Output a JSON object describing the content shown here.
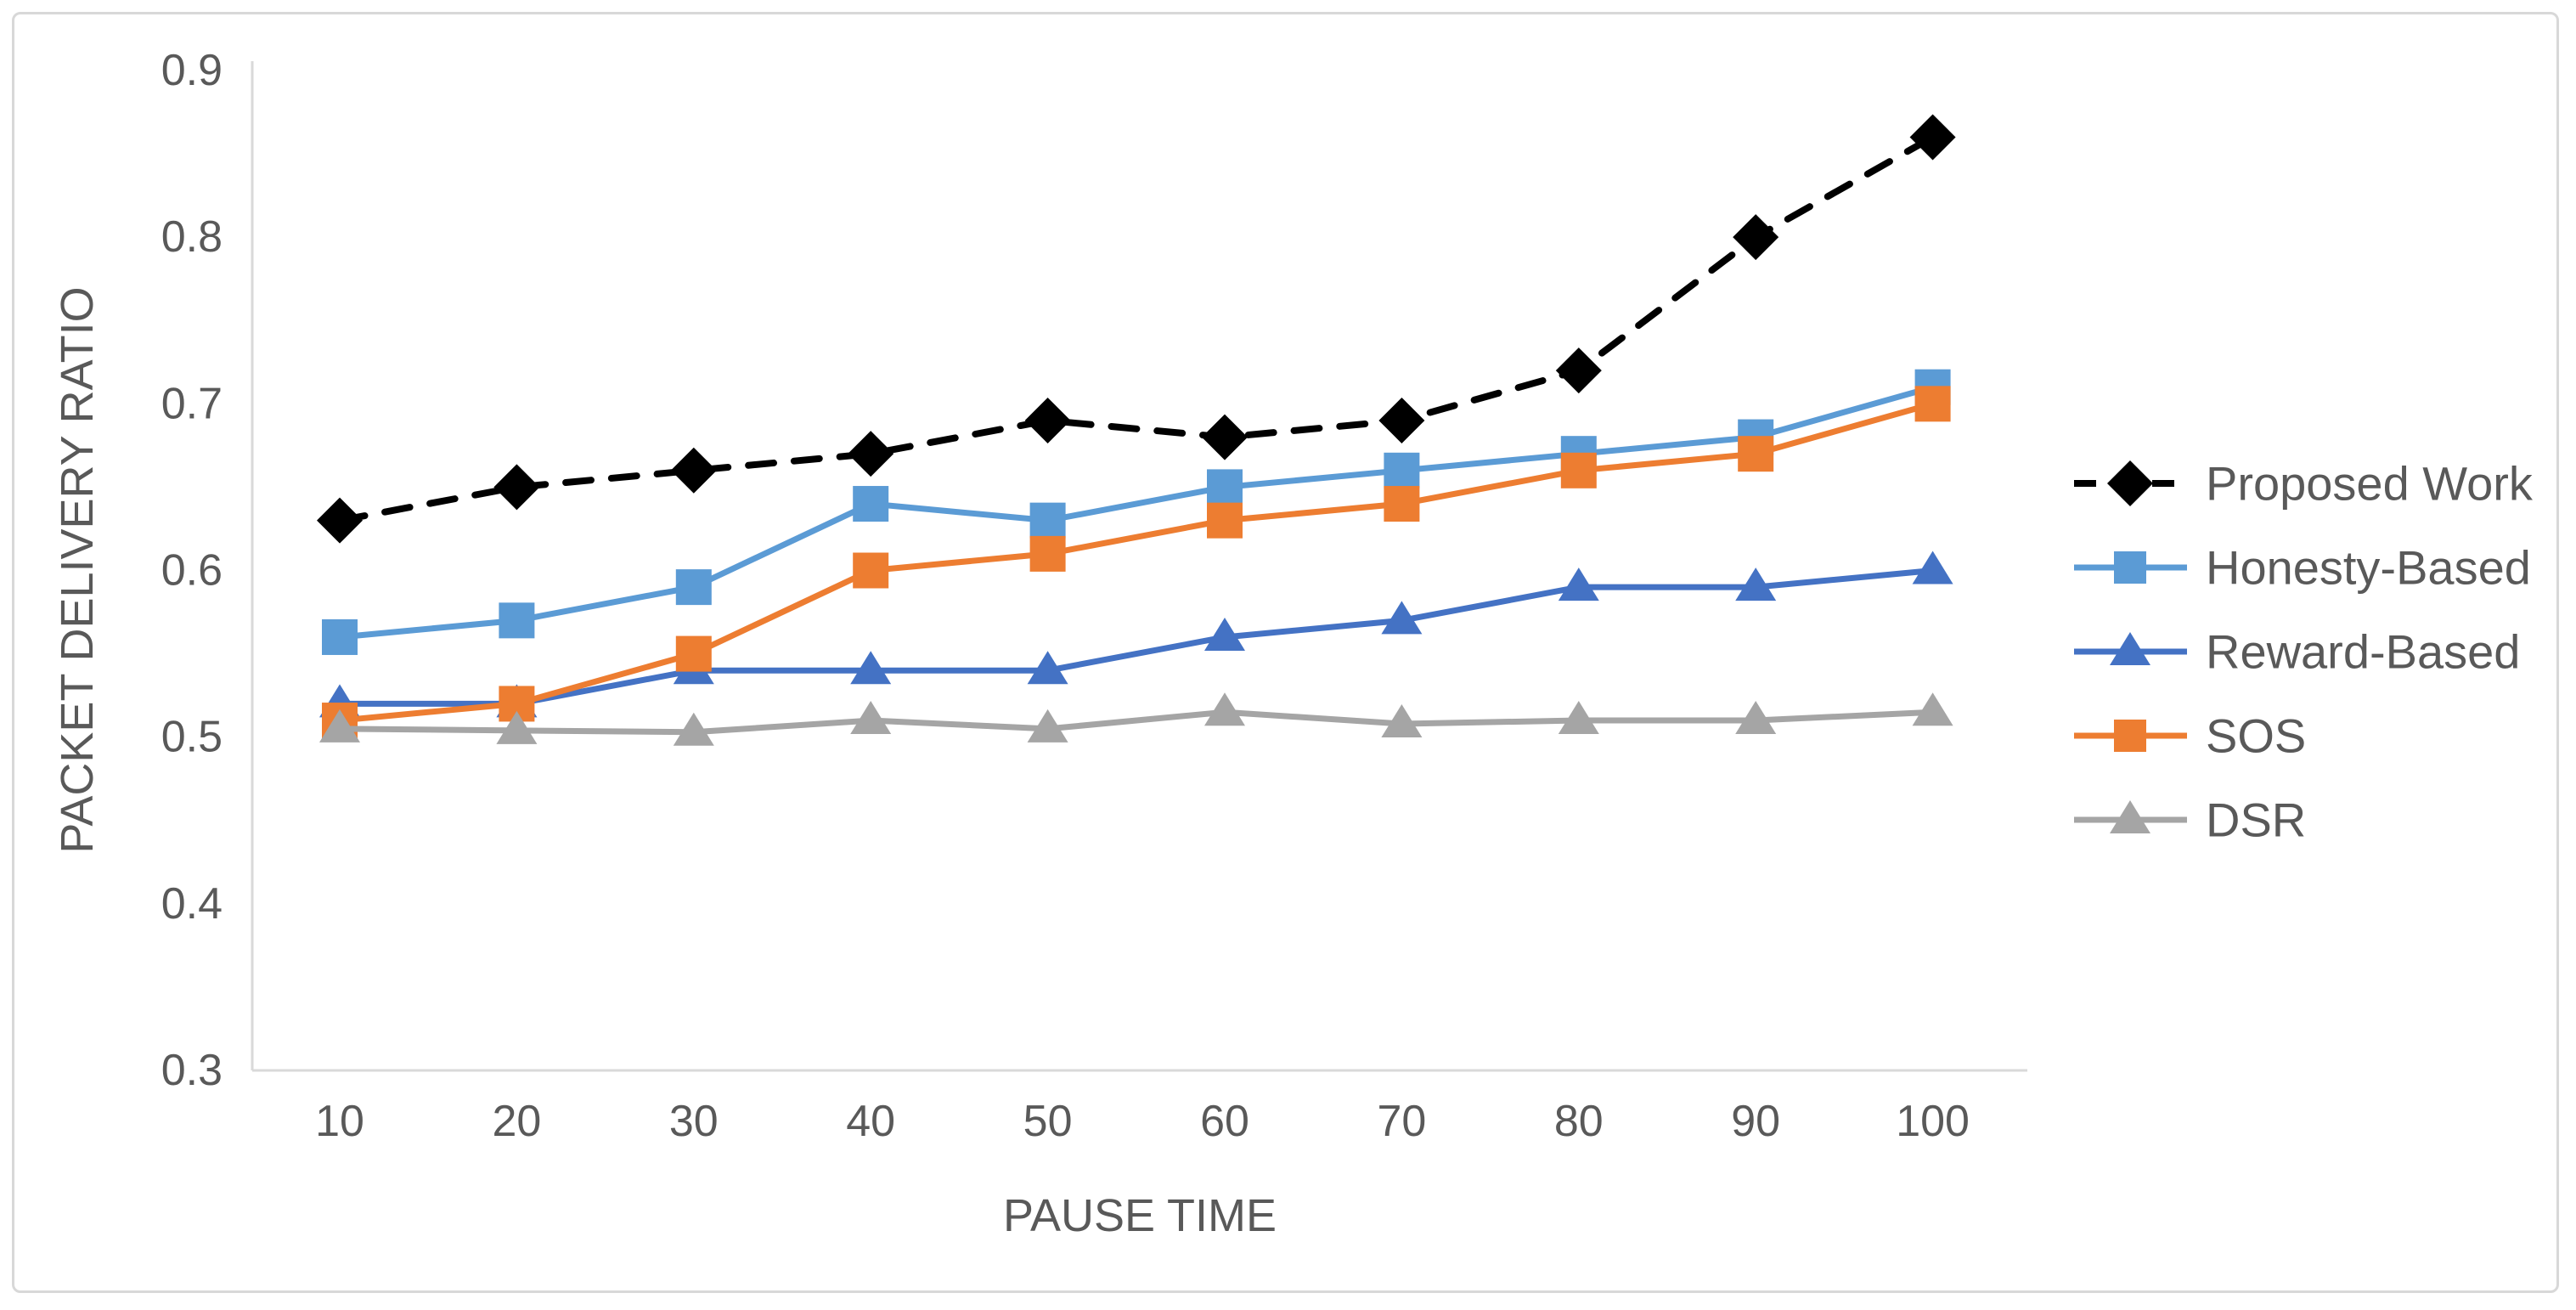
{
  "chart_data": {
    "type": "line",
    "title": "",
    "xlabel": "PAUSE TIME",
    "ylabel": "PACKET DELIVERY RATIO",
    "x_categories": [
      "10",
      "20",
      "30",
      "40",
      "50",
      "60",
      "70",
      "80",
      "90",
      "100"
    ],
    "x_values": [
      10,
      20,
      30,
      40,
      50,
      60,
      70,
      80,
      90,
      100
    ],
    "y_ticks": [
      "0.9",
      "0.8",
      "0.7",
      "0.6",
      "0.5",
      "0.4",
      "0.3"
    ],
    "ylim": [
      0.3,
      0.9
    ],
    "y_tick_step": 0.1,
    "grid": false,
    "legend_position": "right",
    "series": [
      {
        "name": "Proposed Work",
        "color": "#000000",
        "marker": "diamond",
        "dashed": true,
        "values": [
          0.63,
          0.65,
          0.66,
          0.67,
          0.69,
          0.68,
          0.69,
          0.72,
          0.8,
          0.86
        ]
      },
      {
        "name": "Honesty-Based",
        "color": "#5B9BD5",
        "marker": "square",
        "dashed": false,
        "values": [
          0.56,
          0.57,
          0.59,
          0.64,
          0.63,
          0.65,
          0.66,
          0.67,
          0.68,
          0.71
        ]
      },
      {
        "name": "Reward-Based",
        "color": "#4472C4",
        "marker": "triangle",
        "dashed": false,
        "values": [
          0.52,
          0.52,
          0.54,
          0.54,
          0.54,
          0.56,
          0.57,
          0.59,
          0.59,
          0.6
        ]
      },
      {
        "name": "SOS",
        "color": "#ED7D31",
        "marker": "square",
        "dashed": false,
        "values": [
          0.51,
          0.52,
          0.55,
          0.6,
          0.61,
          0.63,
          0.64,
          0.66,
          0.67,
          0.7
        ]
      },
      {
        "name": "DSR",
        "color": "#A5A5A5",
        "marker": "triangle",
        "dashed": false,
        "values": [
          0.505,
          0.504,
          0.503,
          0.51,
          0.505,
          0.515,
          0.508,
          0.51,
          0.51,
          0.515
        ]
      }
    ],
    "axis_color": "#D9D9D9",
    "text_color": "#595959"
  }
}
